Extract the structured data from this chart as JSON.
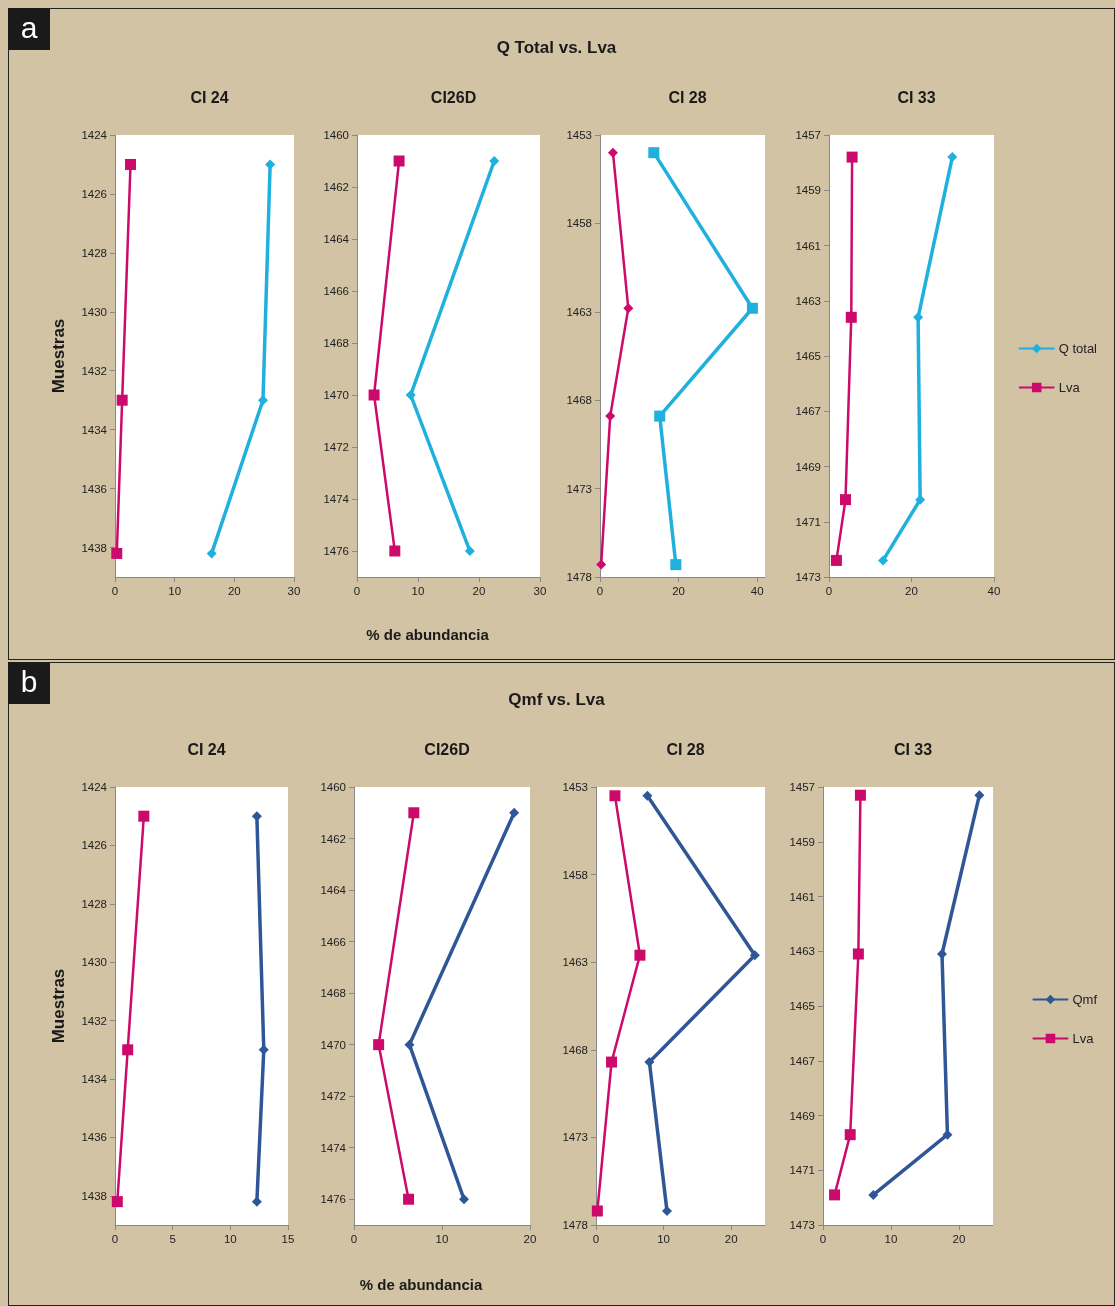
{
  "chart_data": [
    {
      "type": "line",
      "title": "CI 24",
      "annotations": [
        "a",
        "Q Total vs. Lva"
      ],
      "ylabel": "Muestras",
      "xlim": [
        0,
        30
      ],
      "xticks": [
        0,
        10,
        20,
        30
      ],
      "ylim": [
        1439,
        1424
      ],
      "yticks": [
        1424,
        1426,
        1428,
        1430,
        1432,
        1434,
        1436,
        1438
      ],
      "series": [
        {
          "color": "#1fb0de",
          "marker": "diamond",
          "x": [
            26.0,
            24.8,
            16.2
          ],
          "values": [
            1425,
            1433,
            1438.2
          ]
        },
        {
          "color": "#cc0a6b",
          "marker": "square",
          "x": [
            2.6,
            1.2,
            0.3
          ],
          "values": [
            1425,
            1433,
            1438.2
          ]
        }
      ]
    },
    {
      "type": "line",
      "title": "CI26D",
      "xlabel": "% de abundancia",
      "xlim": [
        0,
        30
      ],
      "xticks": [
        0,
        10,
        20,
        30
      ],
      "ylim": [
        1477,
        1460
      ],
      "yticks": [
        1460,
        1462,
        1464,
        1466,
        1468,
        1470,
        1472,
        1474,
        1476
      ],
      "series": [
        {
          "color": "#1fb0de",
          "marker": "diamond",
          "x": [
            22.5,
            8.8,
            18.5
          ],
          "values": [
            1461,
            1470,
            1476
          ]
        },
        {
          "color": "#cc0a6b",
          "marker": "square",
          "x": [
            6.9,
            2.8,
            6.2
          ],
          "values": [
            1461,
            1470,
            1476
          ]
        }
      ]
    },
    {
      "type": "line",
      "title": "CI 28",
      "xlim": [
        0,
        42
      ],
      "xticks": [
        0,
        20,
        40
      ],
      "ylim": [
        1478,
        1453
      ],
      "yticks": [
        1453,
        1458,
        1463,
        1468,
        1473,
        1478
      ],
      "series": [
        {
          "color": "#1fb0de",
          "marker": "square",
          "x": [
            13.7,
            38.8,
            15.2,
            19.3
          ],
          "values": [
            1454,
            1462.8,
            1468.9,
            1477.3
          ]
        },
        {
          "color": "#cc0a6b",
          "marker": "diamond",
          "x": [
            3.3,
            7.2,
            2.6,
            0.3
          ],
          "values": [
            1454,
            1462.8,
            1468.9,
            1477.3
          ]
        }
      ]
    },
    {
      "type": "line",
      "title": "CI 33",
      "legend": "right",
      "xlim": [
        0,
        40
      ],
      "xticks": [
        0,
        20,
        40
      ],
      "ylim": [
        1473,
        1457
      ],
      "yticks": [
        1457,
        1459,
        1461,
        1463,
        1465,
        1467,
        1469,
        1471,
        1473
      ],
      "series": [
        {
          "name": "Q total",
          "color": "#1fb0de",
          "marker": "diamond",
          "x": [
            29.9,
            21.6,
            22.1,
            13.1
          ],
          "values": [
            1457.8,
            1463.6,
            1470.2,
            1472.4
          ]
        },
        {
          "name": "Lva",
          "color": "#cc0a6b",
          "marker": "square",
          "x": [
            5.6,
            5.4,
            4.0,
            1.8
          ],
          "values": [
            1457.8,
            1463.6,
            1470.2,
            1472.4
          ]
        }
      ]
    },
    {
      "type": "line",
      "title": "CI 24",
      "annotations": [
        "b",
        "Qmf vs. Lva"
      ],
      "ylabel": "Muestras",
      "xlim": [
        0,
        15
      ],
      "xticks": [
        0,
        5,
        10,
        15
      ],
      "ylim": [
        1439,
        1424
      ],
      "yticks": [
        1424,
        1426,
        1428,
        1430,
        1432,
        1434,
        1436,
        1438
      ],
      "series": [
        {
          "color": "#2f5697",
          "marker": "diamond",
          "x": [
            12.3,
            12.9,
            12.3
          ],
          "values": [
            1425,
            1433,
            1438.2
          ]
        },
        {
          "color": "#cc0a6b",
          "marker": "square",
          "x": [
            2.5,
            1.1,
            0.2
          ],
          "values": [
            1425,
            1433,
            1438.2
          ]
        }
      ]
    },
    {
      "type": "line",
      "title": "CI26D",
      "xlabel": "% de abundancia",
      "xlim": [
        0,
        20
      ],
      "xticks": [
        0,
        10,
        20
      ],
      "ylim": [
        1477,
        1460
      ],
      "yticks": [
        1460,
        1462,
        1464,
        1466,
        1468,
        1470,
        1472,
        1474,
        1476
      ],
      "series": [
        {
          "color": "#2f5697",
          "marker": "diamond",
          "x": [
            18.2,
            6.3,
            12.5
          ],
          "values": [
            1461,
            1470,
            1476
          ]
        },
        {
          "color": "#cc0a6b",
          "marker": "square",
          "x": [
            6.8,
            2.8,
            6.2
          ],
          "values": [
            1461,
            1470,
            1476
          ]
        }
      ]
    },
    {
      "type": "line",
      "title": "CI 28",
      "xlim": [
        0,
        25
      ],
      "xticks": [
        0,
        10,
        20
      ],
      "ylim": [
        1478,
        1453
      ],
      "yticks": [
        1453,
        1458,
        1463,
        1468,
        1473,
        1478
      ],
      "series": [
        {
          "color": "#2f5697",
          "marker": "diamond",
          "x": [
            7.6,
            23.5,
            7.9,
            10.5
          ],
          "values": [
            1453.5,
            1462.6,
            1468.7,
            1477.2
          ]
        },
        {
          "color": "#cc0a6b",
          "marker": "square",
          "x": [
            2.8,
            6.5,
            2.3,
            0.2
          ],
          "values": [
            1453.5,
            1462.6,
            1468.7,
            1477.2
          ]
        }
      ]
    },
    {
      "type": "line",
      "title": "CI 33",
      "legend": "right",
      "xlim": [
        0,
        25
      ],
      "xticks": [
        0,
        10,
        20
      ],
      "ylim": [
        1473,
        1457
      ],
      "yticks": [
        1457,
        1459,
        1461,
        1463,
        1465,
        1467,
        1469,
        1471,
        1473
      ],
      "series": [
        {
          "name": "Qmf",
          "color": "#2f5697",
          "marker": "diamond",
          "x": [
            23.0,
            17.5,
            18.3,
            7.4
          ],
          "values": [
            1457.3,
            1463.1,
            1469.7,
            1471.9
          ]
        },
        {
          "name": "Lva",
          "color": "#cc0a6b",
          "marker": "square",
          "x": [
            5.5,
            5.2,
            4.0,
            1.7
          ],
          "values": [
            1457.3,
            1463.1,
            1469.7,
            1471.9
          ]
        }
      ]
    }
  ]
}
